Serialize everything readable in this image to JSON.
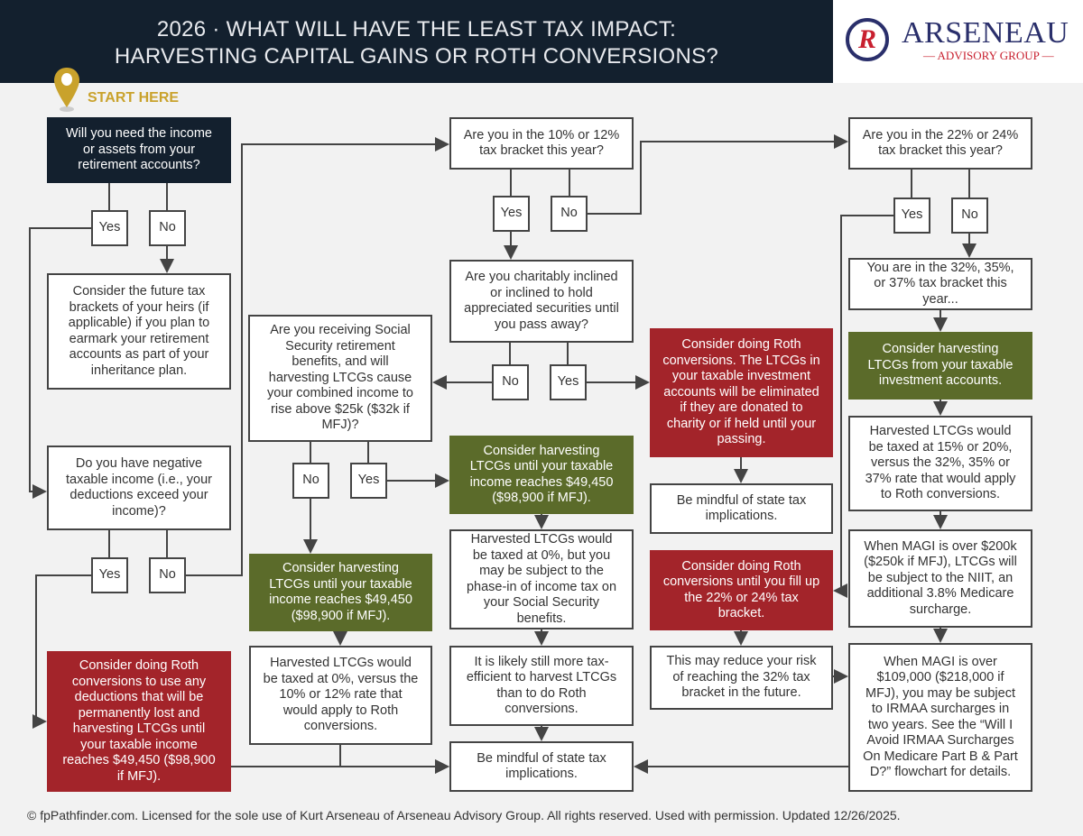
{
  "header": {
    "title_line1": "2026 · WHAT WILL HAVE THE LEAST TAX IMPACT:",
    "title_line2": "HARVESTING CAPITAL GAINS OR ROTH CONVERSIONS?"
  },
  "logo": {
    "name": "ARSENEAU",
    "sub": "ADVISORY GROUP",
    "mark": "R"
  },
  "start_label": "START HERE",
  "colors": {
    "navy": "#13202e",
    "red": "#a3242a",
    "green": "#5b6b2a",
    "gold": "#c9a22c"
  },
  "nodes": {
    "q_need_income": "Will you need the income or assets from your retirement accounts?",
    "q1_yes": "Yes",
    "q1_no": "No",
    "heirs": "Consider the future tax brackets of your heirs (if applicable) if you plan to earmark your retirement accounts as part of your inheritance plan.",
    "q_negative": "Do you have negative taxable income (i.e., your deductions exceed your income)?",
    "q2_yes": "Yes",
    "q2_no": "No",
    "roth_deductions": "Consider doing Roth conversions to use any deductions that will be permanently lost and harvesting LTCGs until your taxable income reaches $49,450 ($98,900 if MFJ).",
    "q_10_12": "Are you in the 10% or 12% tax bracket this year?",
    "q3_yes": "Yes",
    "q3_no": "No",
    "q_charity": "Are you charitably inclined or inclined to hold appreciated securities until you pass away?",
    "q4_no": "No",
    "q4_yes": "Yes",
    "q_ss": "Are you receiving Social Security retirement benefits, and will harvesting LTCGs cause your combined income to rise above $25k ($32k if MFJ)?",
    "q5_no": "No",
    "q5_yes": "Yes",
    "green_mid": "Consider harvesting LTCGs until your taxable income reaches $49,450 ($98,900 if MFJ).",
    "phase_in": "Harvested LTCGs would be taxed at 0%, but you may be subject to the phase-in of income tax on your Social Security benefits.",
    "likely": "It is likely still more tax-efficient to harvest LTCGs than to do Roth conversions.",
    "mindful_bottom": "Be mindful of state tax implications.",
    "green_left": "Consider harvesting LTCGs until your taxable income reaches $49,450 ($98,900 if MFJ).",
    "taxed_0": "Harvested LTCGs would be taxed at 0%, versus the 10% or 12% rate that would apply to Roth conversions.",
    "red_charity": "Consider doing Roth conversions. The LTCGs in your taxable investment accounts will be eliminated if they are donated to charity or if held until your passing.",
    "mindful_mid": "Be mindful of state tax implications.",
    "red_22_24": "Consider doing Roth conversions until you fill up the 22% or 24% tax bracket.",
    "reduce_risk": "This may reduce your risk of reaching the 32% tax bracket in the future.",
    "q_22_24": "Are you in the 22% or 24% tax bracket this year?",
    "q6_yes": "Yes",
    "q6_no": "No",
    "high_bracket": "You are in the 32%, 35%, or 37% tax bracket this year...",
    "green_right": "Consider harvesting LTCGs from your taxable investment accounts.",
    "taxed_15_20": "Harvested LTCGs would be taxed at 15% or 20%, versus the 32%, 35% or 37% rate that would apply to Roth conversions.",
    "niit": "When MAGI is over $200k ($250k if MFJ), LTCGs will be subject to the NIIT, an additional 3.8% Medicare surcharge.",
    "irmaa": "When MAGI is over $109,000 ($218,000 if MFJ), you may be subject to IRMAA surcharges in two years. See the “Will I Avoid IRMAA Surcharges On Medicare Part B & Part D?” flowchart for details."
  },
  "footer": "© fpPathfinder.com. Licensed for the sole use of Kurt Arseneau of Arseneau Advisory Group. All rights reserved. Used with permission. Updated 12/26/2025."
}
